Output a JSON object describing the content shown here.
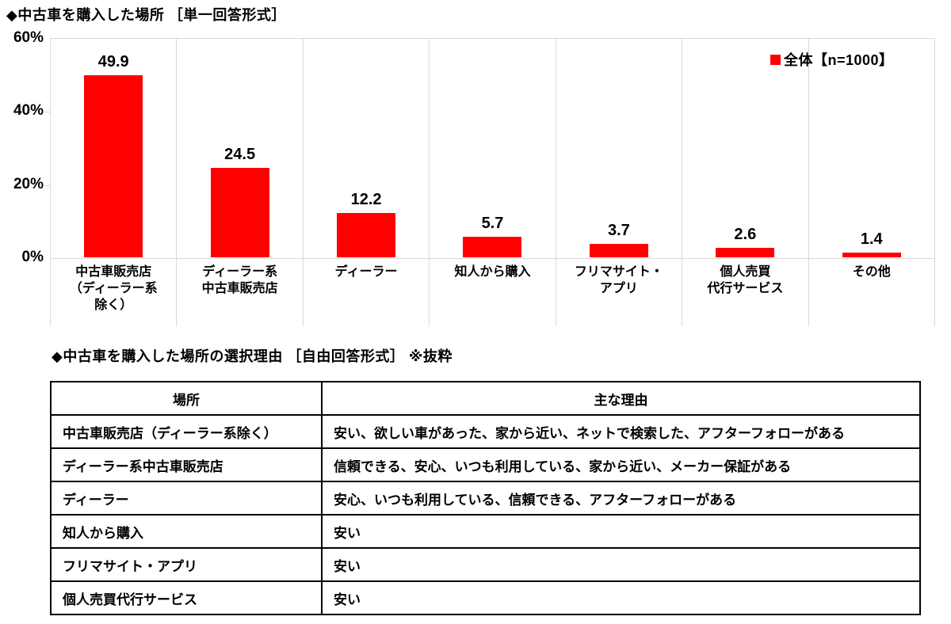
{
  "chart": {
    "title": "◆中古車を購入した場所 ［単一回答形式］",
    "legend_label": "全体【n=1000】",
    "bar_color": "#fe0000",
    "grid_color": "#d9d9d9"
  },
  "chart_data": {
    "type": "bar",
    "title": "◆中古車を購入した場所 ［単一回答形式］",
    "legend": [
      "全体【n=1000】"
    ],
    "legend_position": "top-right-inside",
    "categories": [
      "中古車販売店\n（ディーラー系\n除く）",
      "ディーラー系\n中古車販売店",
      "ディーラー",
      "知人から購入",
      "フリマサイト・\nアプリ",
      "個人売買\n代行サービス",
      "その他"
    ],
    "values": [
      49.9,
      24.5,
      12.2,
      5.7,
      3.7,
      2.6,
      1.4
    ],
    "xlabel": "",
    "ylabel": "",
    "ylim": [
      0,
      60
    ],
    "y_ticks": [
      "0%",
      "20%",
      "40%",
      "60%"
    ],
    "grid": "vertical category separators only",
    "series_color": "#fe0000"
  },
  "table": {
    "title": "◆中古車を購入した場所の選択理由 ［自由回答形式］ ※抜粋",
    "headers": [
      "場所",
      "主な理由"
    ],
    "rows": [
      [
        "中古車販売店（ディーラー系除く）",
        "安い、欲しい車があった、家から近い、ネットで検索した、アフターフォローがある"
      ],
      [
        "ディーラー系中古車販売店",
        "信頼できる、安心、いつも利用している、家から近い、メーカー保証がある"
      ],
      [
        "ディーラー",
        "安心、いつも利用している、信頼できる、アフターフォローがある"
      ],
      [
        "知人から購入",
        "安い"
      ],
      [
        "フリマサイト・アプリ",
        "安い"
      ],
      [
        "個人売買代行サービス",
        "安い"
      ]
    ]
  }
}
